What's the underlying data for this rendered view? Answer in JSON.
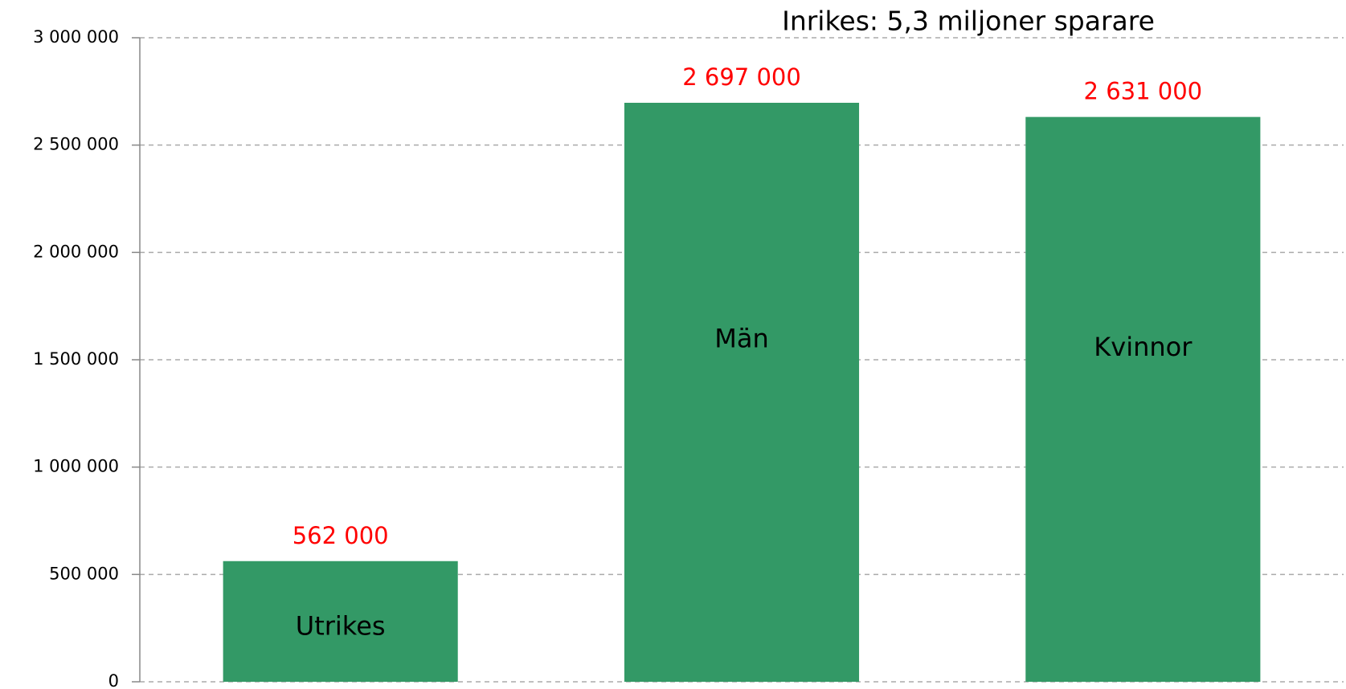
{
  "chart_data": {
    "type": "bar",
    "annotation": "Inrikes: 5,3 miljoner sparare",
    "categories": [
      "Utrikes",
      "Män",
      "Kvinnor"
    ],
    "values": [
      562000,
      2697000,
      2631000
    ],
    "value_labels": [
      "562 000",
      "2 697 000",
      "2 631 000"
    ],
    "color": "#339966",
    "value_label_color": "#ff0000",
    "ylim": [
      0,
      3000000
    ],
    "yticks": [
      0,
      {
        "value": 500000,
        "label": "500 000"
      },
      {
        "value": 1000000,
        "label": "1 000 000"
      },
      {
        "value": 1500000,
        "label": "1 500 000"
      },
      {
        "value": 2000000,
        "label": "2 000 000"
      },
      {
        "value": 2500000,
        "label": "2 500 000"
      },
      {
        "value": 3000000,
        "label": "3 000 000"
      }
    ],
    "grid": true
  }
}
